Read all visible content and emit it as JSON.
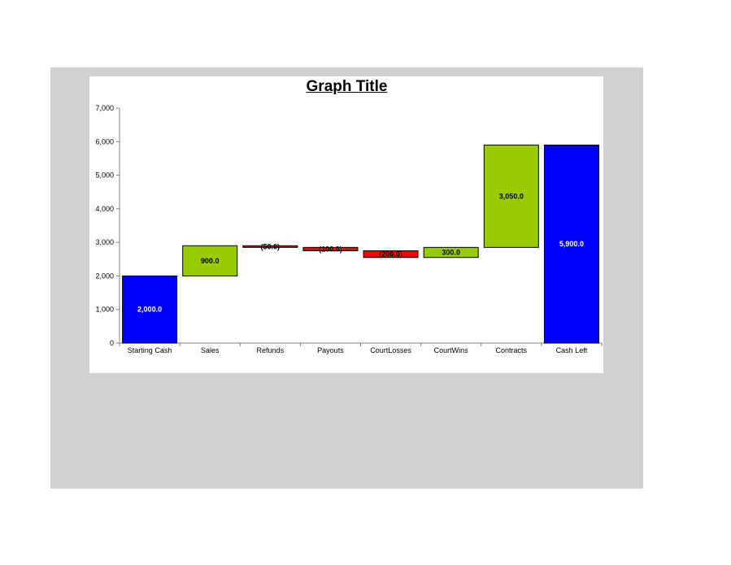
{
  "chart_data": {
    "type": "bar",
    "subtype": "waterfall",
    "title": "Graph Title",
    "xlabel": "",
    "ylabel": "",
    "ylim": [
      0,
      7000
    ],
    "y_ticks": [
      0,
      1000,
      2000,
      3000,
      4000,
      5000,
      6000,
      7000
    ],
    "y_tick_labels": [
      "0",
      "1,000",
      "2,000",
      "3,000",
      "4,000",
      "5,000",
      "6,000",
      "7,000"
    ],
    "grid": false,
    "legend": "none",
    "categories": [
      "Starting Cash",
      "Sales",
      "Refunds",
      "Payouts",
      "CourtLosses",
      "CourtWins",
      "Contracts",
      "Cash Left"
    ],
    "bars": [
      {
        "category": "Starting Cash",
        "kind": "total",
        "start": 0,
        "end": 2000,
        "label": "2,000.0"
      },
      {
        "category": "Sales",
        "kind": "increase",
        "start": 2000,
        "end": 2900,
        "label": "900.0"
      },
      {
        "category": "Refunds",
        "kind": "decrease",
        "start": 2900,
        "end": 2850,
        "label": "(50.0)"
      },
      {
        "category": "Payouts",
        "kind": "decrease",
        "start": 2850,
        "end": 2750,
        "label": "(100.0)"
      },
      {
        "category": "CourtLosses",
        "kind": "decrease",
        "start": 2750,
        "end": 2550,
        "label": "(200.0)"
      },
      {
        "category": "CourtWins",
        "kind": "increase",
        "start": 2550,
        "end": 2850,
        "label": "300.0"
      },
      {
        "category": "Contracts",
        "kind": "increase",
        "start": 2850,
        "end": 5900,
        "label": "3,050.0"
      },
      {
        "category": "Cash Left",
        "kind": "total",
        "start": 0,
        "end": 5900,
        "label": "5,900.0"
      }
    ],
    "colors": {
      "total": "#0000ff",
      "increase": "#99cc00",
      "decrease": "#ff0000"
    }
  }
}
